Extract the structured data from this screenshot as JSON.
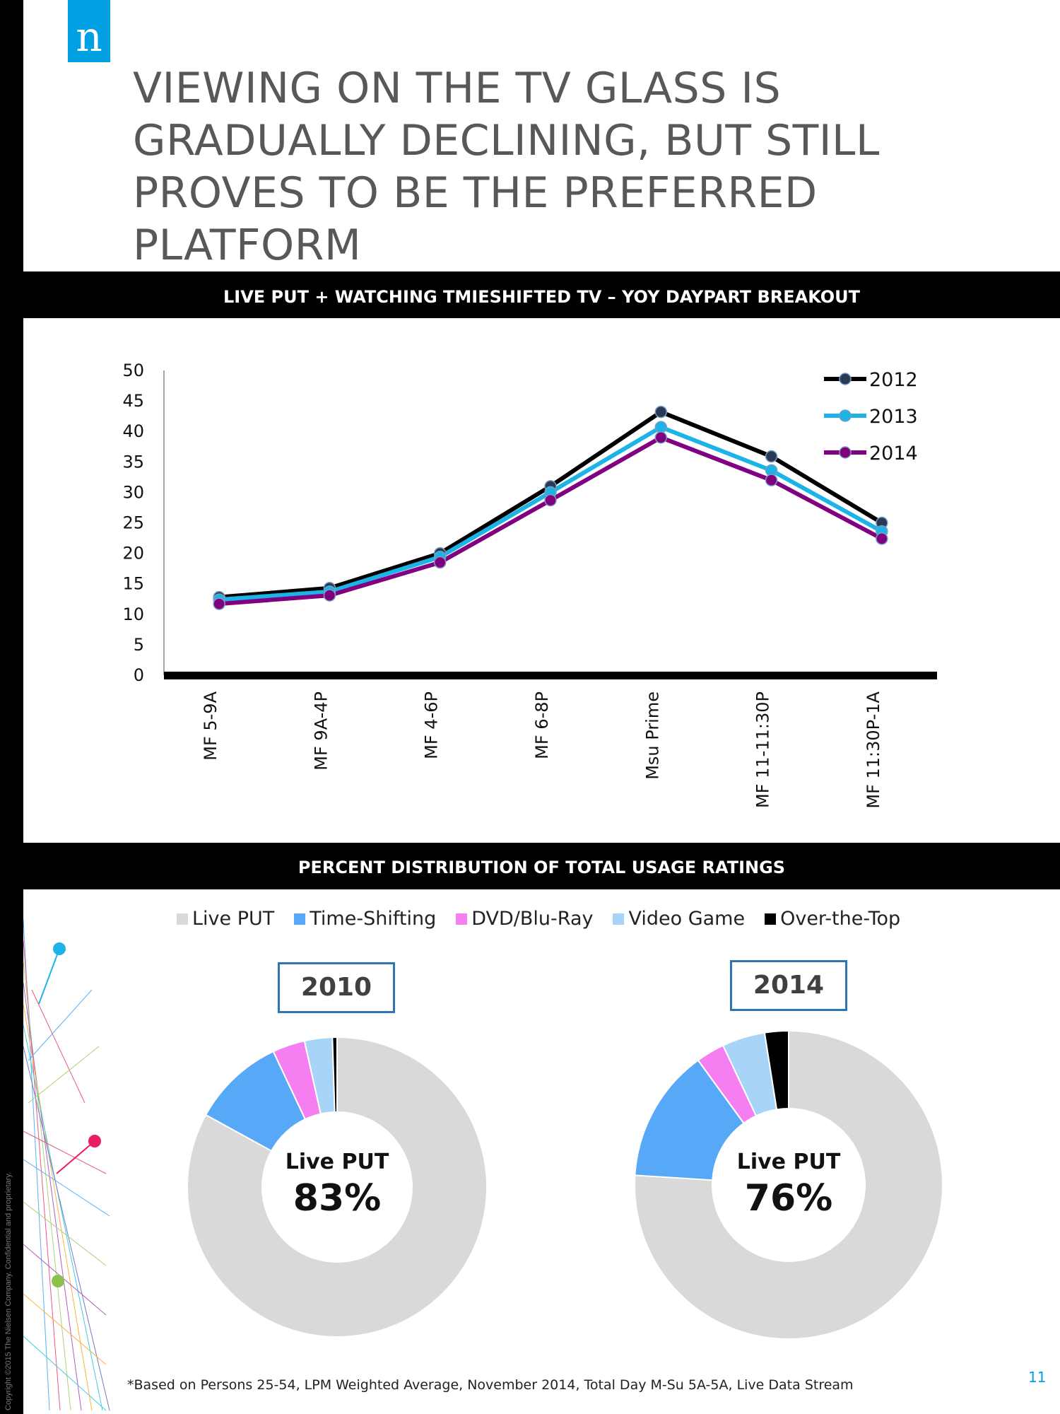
{
  "logo": {
    "letter": "n"
  },
  "headline": "VIEWING ON THE TV GLASS IS GRADUALLY DECLINING, BUT STILL PROVES TO BE THE PREFERRED PLATFORM",
  "line_section_title": "LIVE PUT + WATCHING TMIESHIFTED TV – YOY DAYPART BREAKOUT",
  "donut_section_title": "PERCENT DISTRIBUTION OF TOTAL USAGE RATINGS",
  "colors": {
    "series_2012": "#000000",
    "series_2013": "#1cb4e6",
    "series_2014": "#800080",
    "marker_2012": "#2a3a55",
    "marker_2013": "#1cb4e6",
    "marker_2014": "#800080",
    "live_put": "#d9d9d9",
    "time_shifting": "#58a8f8",
    "dvd": "#f57ef0",
    "video_game": "#a8d4f8",
    "ott": "#000000",
    "accent": "#00a0e2"
  },
  "chart_data": [
    {
      "type": "line",
      "title": "LIVE PUT + WATCHING TMIESHIFTED TV – YOY DAYPART BREAKOUT",
      "categories": [
        "MF 5-9A",
        "MF 9A-4P",
        "MF 4-6P",
        "MF 6-8P",
        "Msu Prime",
        "MF 11-11:30P",
        "MF 11:30P-1A"
      ],
      "ylim": [
        0,
        50
      ],
      "yticks": [
        0,
        5,
        10,
        15,
        20,
        25,
        30,
        35,
        40,
        45,
        50
      ],
      "legend_position": "top-right",
      "series": [
        {
          "name": "2012",
          "values": [
            12.8,
            14.3,
            20.0,
            31.0,
            43.2,
            35.9,
            25.0
          ]
        },
        {
          "name": "2013",
          "values": [
            12.4,
            13.7,
            19.4,
            30.0,
            40.7,
            33.6,
            23.6
          ]
        },
        {
          "name": "2014",
          "values": [
            11.7,
            13.1,
            18.5,
            28.7,
            39.0,
            32.0,
            22.4
          ]
        }
      ]
    },
    {
      "type": "pie",
      "variant": "donut",
      "title": "2010",
      "categories": [
        "Live PUT",
        "Time-Shifting",
        "DVD/Blu-Ray",
        "Video Game",
        "Over-the-Top"
      ],
      "values": [
        83,
        10,
        3.5,
        3,
        0.5
      ],
      "center_label": "Live PUT",
      "center_value": "83%"
    },
    {
      "type": "pie",
      "variant": "donut",
      "title": "2014",
      "categories": [
        "Live PUT",
        "Time-Shifting",
        "DVD/Blu-Ray",
        "Video Game",
        "Over-the-Top"
      ],
      "values": [
        76,
        14,
        3,
        4.5,
        2.5
      ],
      "center_label": "Live PUT",
      "center_value": "76%"
    }
  ],
  "donut_legend": [
    "Live PUT",
    "Time-Shifting",
    "DVD/Blu-Ray",
    "Video Game",
    "Over-the-Top"
  ],
  "footnote": "*Based on Persons 25-54, LPM Weighted Average, November 2014, Total Day M-Su 5A-5A, Live Data Stream",
  "copyright": "Copyright ©2015 The Nielsen Company. Confidential and proprietary.",
  "page_number": "11"
}
